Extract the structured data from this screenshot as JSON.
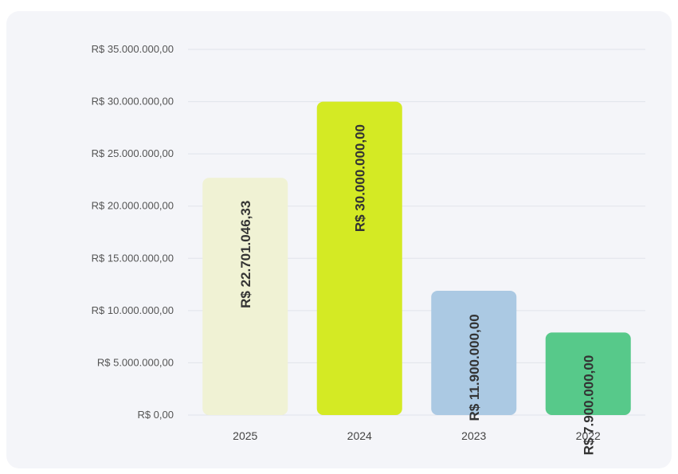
{
  "chart_data": {
    "type": "bar",
    "categories": [
      "2025",
      "2024",
      "2023",
      "2022"
    ],
    "values": [
      22701046.33,
      30000000,
      11900000,
      7900000
    ],
    "data_labels": [
      "R$ 22.701.046,33",
      "R$ 30.000.000,00",
      "R$ 11.900.000,00",
      "R$ 7.900.000,00"
    ],
    "bar_colors": [
      "#f0f2d4",
      "#d4ea24",
      "#abc9e3",
      "#57c98a"
    ],
    "yticks": [
      "R$ 0,00",
      "R$ 5.000.000,00",
      "R$ 10.000.000,00",
      "R$ 15.000.000,00",
      "R$ 20.000.000,00",
      "R$ 25.000.000,00",
      "R$ 30.000.000,00",
      "R$ 35.000.000,00"
    ],
    "ylim": [
      0,
      35000000
    ],
    "grid": true,
    "title": "",
    "xlabel": "",
    "ylabel": ""
  }
}
